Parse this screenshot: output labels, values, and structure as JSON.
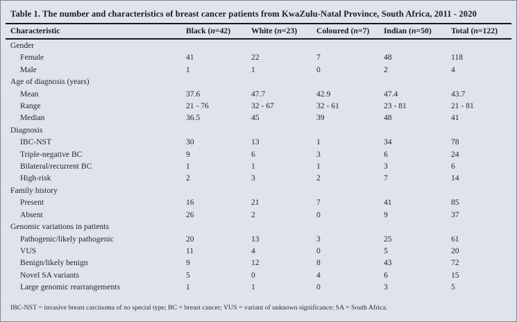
{
  "table": {
    "title": "Table 1. The number and characteristics of breast cancer patients from KwaZulu-Natal Province, South Africa, 2011 - 2020",
    "columns": [
      "Characteristic",
      "Black (n=42)",
      "White (n=23)",
      "Coloured (n=7)",
      "Indian (n=50)",
      "Total (n=122)"
    ],
    "rows": [
      {
        "label": "Gender",
        "indent": false,
        "values": [
          "",
          "",
          "",
          "",
          ""
        ]
      },
      {
        "label": "Female",
        "indent": true,
        "values": [
          "41",
          "22",
          "7",
          "48",
          "118"
        ]
      },
      {
        "label": "Male",
        "indent": true,
        "values": [
          "1",
          "1",
          "0",
          "2",
          "4"
        ]
      },
      {
        "label": "Age of diagnosis (years)",
        "indent": false,
        "values": [
          "",
          "",
          "",
          "",
          ""
        ]
      },
      {
        "label": "Mean",
        "indent": true,
        "values": [
          "37.6",
          "47.7",
          "42.9",
          "47.4",
          "43.7"
        ]
      },
      {
        "label": "Range",
        "indent": true,
        "values": [
          "21 - 76",
          "32 - 67",
          "32 - 61",
          "23 - 81",
          "21 - 81"
        ]
      },
      {
        "label": "Median",
        "indent": true,
        "values": [
          "36.5",
          "45",
          "39",
          "48",
          "41"
        ]
      },
      {
        "label": "Diagnosis",
        "indent": false,
        "values": [
          "",
          "",
          "",
          "",
          ""
        ]
      },
      {
        "label": "IBC-NST",
        "indent": true,
        "values": [
          "30",
          "13",
          "1",
          "34",
          "78"
        ]
      },
      {
        "label": "Triple-negative BC",
        "indent": true,
        "values": [
          "9",
          "6",
          "3",
          "6",
          "24"
        ]
      },
      {
        "label": "Bilateral/recurrent BC",
        "indent": true,
        "values": [
          "1",
          "1",
          "1",
          "3",
          "6"
        ]
      },
      {
        "label": "High-risk",
        "indent": true,
        "values": [
          "2",
          "3",
          "2",
          "7",
          "14"
        ]
      },
      {
        "label": "Family history",
        "indent": false,
        "values": [
          "",
          "",
          "",
          "",
          ""
        ]
      },
      {
        "label": "Present",
        "indent": true,
        "values": [
          "16",
          "21",
          "7",
          "41",
          "85"
        ]
      },
      {
        "label": "Absent",
        "indent": true,
        "values": [
          "26",
          "2",
          "0",
          "9",
          "37"
        ]
      },
      {
        "label": "Genomic variations in patients",
        "indent": false,
        "values": [
          "",
          "",
          "",
          "",
          ""
        ]
      },
      {
        "label": "Pathogenic/likely pathogenic",
        "indent": true,
        "values": [
          "20",
          "13",
          "3",
          "25",
          "61"
        ]
      },
      {
        "label": "VUS",
        "indent": true,
        "values": [
          "11",
          "4",
          "0",
          "5",
          "20"
        ]
      },
      {
        "label": "Benign/likely benign",
        "indent": true,
        "values": [
          "9",
          "12",
          "8",
          "43",
          "72"
        ]
      },
      {
        "label": "Novel SA variants",
        "indent": true,
        "values": [
          "5",
          "0",
          "4",
          "6",
          "15"
        ]
      },
      {
        "label": "Large genomic rearrangements",
        "indent": true,
        "values": [
          "1",
          "1",
          "0",
          "3",
          "5"
        ]
      }
    ],
    "footnote": "IBC-NST = invasive breast carcinoma of no special type; BC = breast cancer; VUS = variant of unknown significance; SA = South Africa."
  },
  "colors": {
    "page_background": "#dfe3ec",
    "rule": "#17171c",
    "text": "#23252e"
  }
}
